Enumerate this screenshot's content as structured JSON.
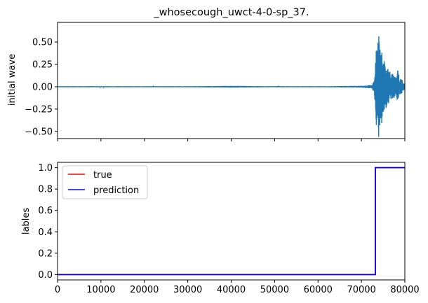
{
  "chart_data": [
    {
      "type": "line",
      "title": "_whosecough_uwct-4-0-sp_37.",
      "xlabel": "",
      "ylabel": "initial wave",
      "xlim": [
        0,
        80000
      ],
      "ylim": [
        -0.58,
        0.72
      ],
      "x_ticks": [
        0,
        10000,
        20000,
        30000,
        40000,
        50000,
        60000,
        70000,
        80000
      ],
      "y_ticks": [
        0.5,
        0.25,
        0.0,
        -0.25,
        -0.5
      ],
      "y_tick_labels": [
        "0.50",
        "0.25",
        "0.00",
        "−0.25",
        "−0.50"
      ],
      "x_tick_labels_visible": false,
      "grid": false,
      "series": [
        {
          "color": "#1f77b4",
          "x": [
            0,
            1000,
            5000,
            10000,
            20000,
            30000,
            40000,
            50000,
            60000,
            70000,
            72500,
            73000,
            73300,
            73600,
            73800,
            74000,
            74200,
            74400,
            74600,
            74800,
            75000,
            75300,
            75600,
            76000,
            76400,
            76800,
            77200,
            77600,
            78000,
            78400,
            78800,
            79200,
            79600,
            80000
          ],
          "values": [
            0.0,
            0.005,
            -0.005,
            0.005,
            -0.005,
            0.005,
            -0.01,
            0.005,
            -0.005,
            0.01,
            -0.02,
            0.08,
            -0.35,
            0.55,
            -0.52,
            0.68,
            -0.5,
            0.35,
            -0.45,
            0.4,
            -0.3,
            0.3,
            -0.25,
            0.2,
            -0.2,
            0.15,
            -0.15,
            0.12,
            -0.1,
            0.2,
            -0.08,
            0.1,
            -0.05,
            0.03
          ]
        }
      ]
    },
    {
      "type": "line",
      "title": "",
      "xlabel": "",
      "ylabel": "lables",
      "xlim": [
        0,
        80000
      ],
      "ylim": [
        -0.05,
        1.05
      ],
      "x_ticks": [
        0,
        10000,
        20000,
        30000,
        40000,
        50000,
        60000,
        70000,
        80000
      ],
      "x_tick_labels": [
        "0",
        "10000",
        "20000",
        "30000",
        "40000",
        "50000",
        "60000",
        "70000",
        "80000"
      ],
      "y_ticks": [
        0.0,
        0.2,
        0.4,
        0.6,
        0.8,
        1.0
      ],
      "y_tick_labels": [
        "0.0",
        "0.2",
        "0.4",
        "0.6",
        "0.8",
        "1.0"
      ],
      "grid": false,
      "legend_position": "top-left",
      "series": [
        {
          "name": "true",
          "color": "#ff0000",
          "x": [
            0,
            73200,
            73200,
            80000
          ],
          "values": [
            0,
            0,
            1,
            1
          ]
        },
        {
          "name": "prediction",
          "color": "#0000ff",
          "x": [
            0,
            73200,
            73200,
            80000
          ],
          "values": [
            0,
            0,
            1,
            1
          ]
        }
      ]
    }
  ]
}
